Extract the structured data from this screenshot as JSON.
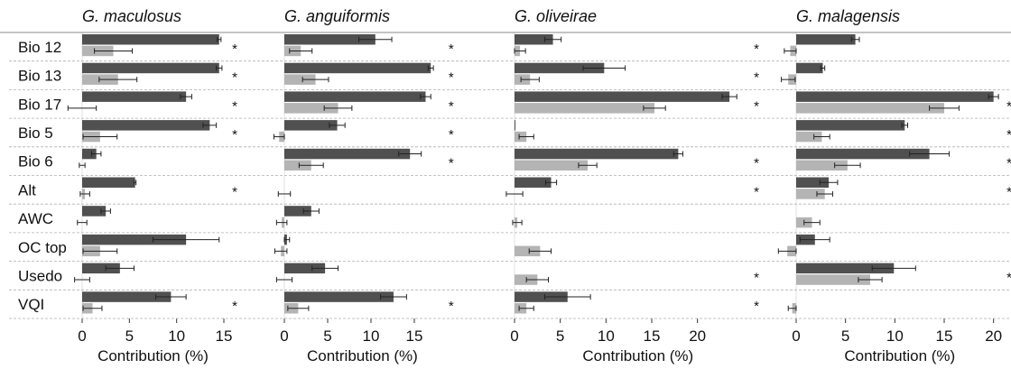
{
  "chart_data": {
    "type": "bar",
    "orientation": "horizontal",
    "categories": [
      "Bio 12",
      "Bio 13",
      "Bio 17",
      "Bio 5",
      "Bio 6",
      "Alt",
      "AWC",
      "OC top",
      "Usedo",
      "VQI"
    ],
    "xlabel": "Contribution (%)",
    "significance_marker": "*",
    "colors": {
      "dark": "#505050",
      "light": "#b4b4b4",
      "error": "#222222",
      "grid": "#b0b0b0"
    },
    "panels": [
      {
        "title": "G. maculosus",
        "xlim": [
          0,
          15
        ],
        "ticks": [
          0,
          5,
          10,
          15
        ],
        "series": [
          {
            "values": [
              14.5,
              14.5,
              11,
              13.5,
              1.5,
              5.6,
              2.5,
              11,
              4,
              9.4
            ],
            "errors": [
              0.2,
              0.3,
              0.6,
              0.7,
              0.5,
              0.1,
              0.5,
              3.5,
              1.5,
              1.6
            ]
          },
          {
            "values": [
              3.3,
              3.8,
              0,
              1.9,
              0,
              0.3,
              0,
              1.9,
              0,
              1.1
            ],
            "errors": [
              2,
              2,
              1.5,
              1.8,
              0.3,
              0.5,
              0.5,
              1.8,
              0.8,
              1
            ]
          }
        ],
        "stars": [
          true,
          true,
          true,
          true,
          false,
          true,
          false,
          false,
          false,
          true
        ]
      },
      {
        "title": "G. anguiformis",
        "xlim": [
          0,
          18
        ],
        "ticks": [
          0,
          5,
          10,
          15
        ],
        "series": [
          {
            "values": [
              10.5,
              16.9,
              16.3,
              6.1,
              14.5,
              0,
              3.1,
              0.3,
              4.7,
              12.6
            ],
            "errors": [
              1.9,
              0.3,
              0.6,
              0.9,
              1.3,
              0,
              0.9,
              0.3,
              1.5,
              1.5
            ]
          },
          {
            "values": [
              1.9,
              3.6,
              6.2,
              -0.6,
              3.1,
              0,
              -0.3,
              -0.4,
              0,
              1.6
            ],
            "errors": [
              1.3,
              1.5,
              1.6,
              0.6,
              1.4,
              0.7,
              0.6,
              0.7,
              0.9,
              1.2
            ]
          }
        ],
        "stars": [
          true,
          true,
          true,
          true,
          true,
          false,
          false,
          false,
          false,
          true
        ]
      },
      {
        "title": "G. oliveirae",
        "xlim": [
          0,
          27
        ],
        "ticks": [
          0,
          5,
          10,
          15,
          20
        ],
        "series": [
          {
            "values": [
              4.2,
              9.8,
              23.5,
              0.1,
              17.9,
              4,
              0,
              0,
              0,
              5.8
            ],
            "errors": [
              0.9,
              2.3,
              0.8,
              0,
              0.5,
              0.6,
              0,
              0,
              0,
              2.5
            ]
          },
          {
            "values": [
              0.6,
              1.7,
              15.3,
              1.3,
              8,
              0,
              0.3,
              2.8,
              2.5,
              1.3
            ],
            "errors": [
              0.6,
              1,
              1.2,
              0.8,
              1,
              0.9,
              0.5,
              1.2,
              1.2,
              0.8
            ]
          }
        ],
        "stars": [
          true,
          true,
          true,
          false,
          true,
          true,
          false,
          false,
          true,
          true
        ]
      },
      {
        "title": "G. malagensis",
        "xlim": [
          0,
          21
        ],
        "ticks": [
          0,
          5,
          10,
          15,
          20
        ],
        "series": [
          {
            "values": [
              6,
              2.7,
              20,
              11,
              13.5,
              3.3,
              0,
              1.9,
              9.9,
              0
            ],
            "errors": [
              0.4,
              0.2,
              0.5,
              0.3,
              2,
              0.9,
              0,
              1.5,
              2.2,
              0
            ]
          },
          {
            "values": [
              -0.6,
              -0.8,
              15,
              2.6,
              5.2,
              2.9,
              1.6,
              -0.9,
              7.5,
              -0.4
            ],
            "errors": [
              0.6,
              0.7,
              1.5,
              0.8,
              1.3,
              0.8,
              0.8,
              0.9,
              1.2,
              0.4
            ]
          }
        ],
        "stars": [
          false,
          false,
          true,
          true,
          true,
          true,
          false,
          false,
          true,
          false
        ]
      }
    ]
  }
}
